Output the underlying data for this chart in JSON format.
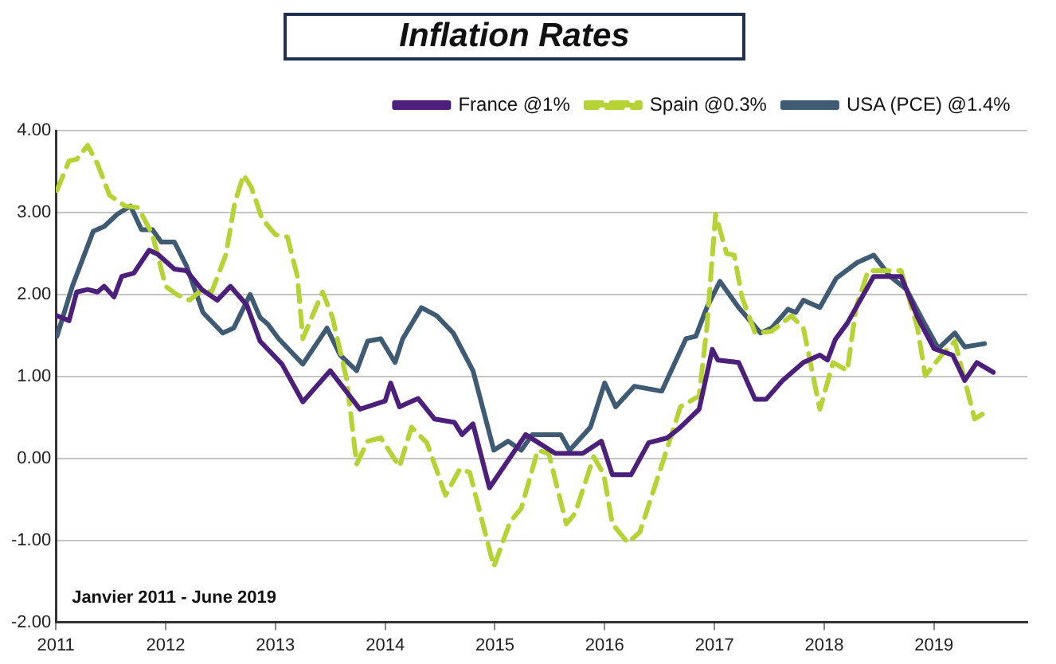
{
  "chart_data": {
    "type": "line",
    "title": "Inflation Rates",
    "annotations": [
      "Janvier 2011 - June 2019"
    ],
    "xlim": [
      2011,
      2019.85
    ],
    "xticks": [
      2011,
      2012,
      2013,
      2014,
      2015,
      2016,
      2017,
      2018,
      2019
    ],
    "ylim": [
      -2,
      4
    ],
    "yticks": [
      {
        "value": -2,
        "label": "-2.00"
      },
      {
        "value": -1,
        "label": "-1.00"
      },
      {
        "value": 0,
        "label": "0.00"
      },
      {
        "value": 1,
        "label": "1.00"
      },
      {
        "value": 2,
        "label": "2.00"
      },
      {
        "value": 3,
        "label": "3.00"
      },
      {
        "value": 4,
        "label": "4.00"
      }
    ],
    "grid": "y",
    "legend": "top right",
    "series": [
      {
        "name": "France @1%",
        "color": "#4b1f7a",
        "line_style": "solid",
        "x": [
          2011.01,
          2011.12,
          2011.19,
          2011.29,
          2011.38,
          2011.44,
          2011.53,
          2011.6,
          2011.71,
          2011.85,
          2011.93,
          2012.08,
          2012.19,
          2012.33,
          2012.47,
          2012.59,
          2012.74,
          2012.86,
          2013.06,
          2013.25,
          2013.5,
          2013.77,
          2014.0,
          2014.05,
          2014.13,
          2014.3,
          2014.45,
          2014.63,
          2014.7,
          2014.8,
          2014.95,
          2015.28,
          2015.55,
          2015.8,
          2015.97,
          2016.07,
          2016.24,
          2016.4,
          2016.57,
          2016.69,
          2016.86,
          2016.98,
          2017.03,
          2017.22,
          2017.37,
          2017.47,
          2017.62,
          2017.81,
          2017.96,
          2018.03,
          2018.1,
          2018.21,
          2018.45,
          2018.7,
          2018.85,
          2019.0,
          2019.17,
          2019.28,
          2019.39,
          2019.54
        ],
        "values": [
          1.74,
          1.68,
          2.03,
          2.06,
          2.03,
          2.1,
          1.97,
          2.22,
          2.26,
          2.54,
          2.49,
          2.31,
          2.29,
          2.06,
          1.93,
          2.1,
          1.87,
          1.43,
          1.15,
          0.69,
          1.07,
          0.6,
          0.7,
          0.92,
          0.63,
          0.73,
          0.48,
          0.44,
          0.29,
          0.42,
          -0.36,
          0.29,
          0.06,
          0.06,
          0.21,
          -0.2,
          -0.2,
          0.19,
          0.25,
          0.38,
          0.6,
          1.33,
          1.2,
          1.17,
          0.72,
          0.72,
          0.95,
          1.17,
          1.26,
          1.2,
          1.45,
          1.65,
          2.22,
          2.22,
          1.72,
          1.34,
          1.26,
          0.95,
          1.17,
          1.05
        ]
      },
      {
        "name": "Spain @0.3%",
        "color": "#b5d334",
        "line_style": "dashed",
        "x": [
          2011.01,
          2011.12,
          2011.19,
          2011.29,
          2011.38,
          2011.49,
          2011.63,
          2011.75,
          2011.88,
          2012.0,
          2012.1,
          2012.22,
          2012.33,
          2012.42,
          2012.55,
          2012.63,
          2012.71,
          2012.78,
          2012.88,
          2013.0,
          2013.11,
          2013.2,
          2013.25,
          2013.35,
          2013.43,
          2013.52,
          2013.65,
          2013.74,
          2013.84,
          2013.96,
          2014.13,
          2014.24,
          2014.38,
          2014.55,
          2014.68,
          2014.77,
          2014.99,
          2015.14,
          2015.24,
          2015.39,
          2015.49,
          2015.65,
          2015.73,
          2015.9,
          2015.99,
          2016.07,
          2016.21,
          2016.32,
          2016.54,
          2016.69,
          2016.86,
          2016.93,
          2017.01,
          2017.11,
          2017.18,
          2017.25,
          2017.37,
          2017.52,
          2017.7,
          2017.81,
          2017.96,
          2018.08,
          2018.21,
          2018.29,
          2018.4,
          2018.7,
          2018.85,
          2018.92,
          2019.07,
          2019.19,
          2019.37,
          2019.44,
          2019.48
        ],
        "values": [
          3.27,
          3.63,
          3.65,
          3.82,
          3.59,
          3.21,
          3.08,
          3.06,
          2.73,
          2.1,
          2.0,
          1.93,
          2.06,
          2.03,
          2.49,
          3.12,
          3.46,
          3.31,
          2.92,
          2.73,
          2.7,
          2.22,
          1.46,
          1.78,
          2.03,
          1.72,
          0.96,
          -0.07,
          0.21,
          0.25,
          -0.1,
          0.38,
          0.19,
          -0.45,
          -0.13,
          -0.17,
          -1.32,
          -0.77,
          -0.61,
          0.1,
          0.06,
          -0.8,
          -0.67,
          0.02,
          -0.19,
          -0.8,
          -1.03,
          -0.9,
          0.0,
          0.63,
          0.76,
          1.59,
          2.98,
          2.5,
          2.48,
          1.97,
          1.53,
          1.55,
          1.74,
          1.59,
          0.6,
          1.17,
          1.07,
          1.84,
          2.29,
          2.29,
          1.59,
          1.01,
          1.26,
          1.43,
          0.48,
          0.54,
          0.44
        ]
      },
      {
        "name": "USA (PCE) @1.4%",
        "color": "#3f5a73",
        "line_style": "solid",
        "x": [
          2011.01,
          2011.15,
          2011.34,
          2011.44,
          2011.56,
          2011.68,
          2011.78,
          2011.88,
          2011.96,
          2012.08,
          2012.19,
          2012.34,
          2012.52,
          2012.62,
          2012.77,
          2012.86,
          2012.93,
          2013.03,
          2013.25,
          2013.47,
          2013.59,
          2013.74,
          2013.84,
          2013.96,
          2014.09,
          2014.16,
          2014.33,
          2014.47,
          2014.62,
          2014.8,
          2014.99,
          2015.12,
          2015.24,
          2015.34,
          2015.6,
          2015.68,
          2015.87,
          2016.0,
          2016.1,
          2016.27,
          2016.52,
          2016.74,
          2016.83,
          2016.93,
          2017.05,
          2017.22,
          2017.42,
          2017.52,
          2017.67,
          2017.74,
          2017.81,
          2017.96,
          2018.11,
          2018.3,
          2018.45,
          2018.6,
          2018.75,
          2018.9,
          2019.04,
          2019.19,
          2019.28,
          2019.46
        ],
        "values": [
          1.49,
          2.1,
          2.77,
          2.83,
          2.98,
          3.08,
          2.79,
          2.79,
          2.64,
          2.64,
          2.35,
          1.78,
          1.53,
          1.59,
          2.0,
          1.72,
          1.64,
          1.46,
          1.15,
          1.59,
          1.26,
          1.07,
          1.43,
          1.46,
          1.17,
          1.46,
          1.84,
          1.74,
          1.53,
          1.07,
          0.1,
          0.21,
          0.1,
          0.29,
          0.29,
          0.1,
          0.38,
          0.92,
          0.63,
          0.88,
          0.82,
          1.46,
          1.49,
          1.84,
          2.16,
          1.84,
          1.53,
          1.59,
          1.82,
          1.78,
          1.93,
          1.84,
          2.2,
          2.39,
          2.48,
          2.22,
          2.06,
          1.68,
          1.34,
          1.53,
          1.36,
          1.4
        ]
      }
    ]
  }
}
